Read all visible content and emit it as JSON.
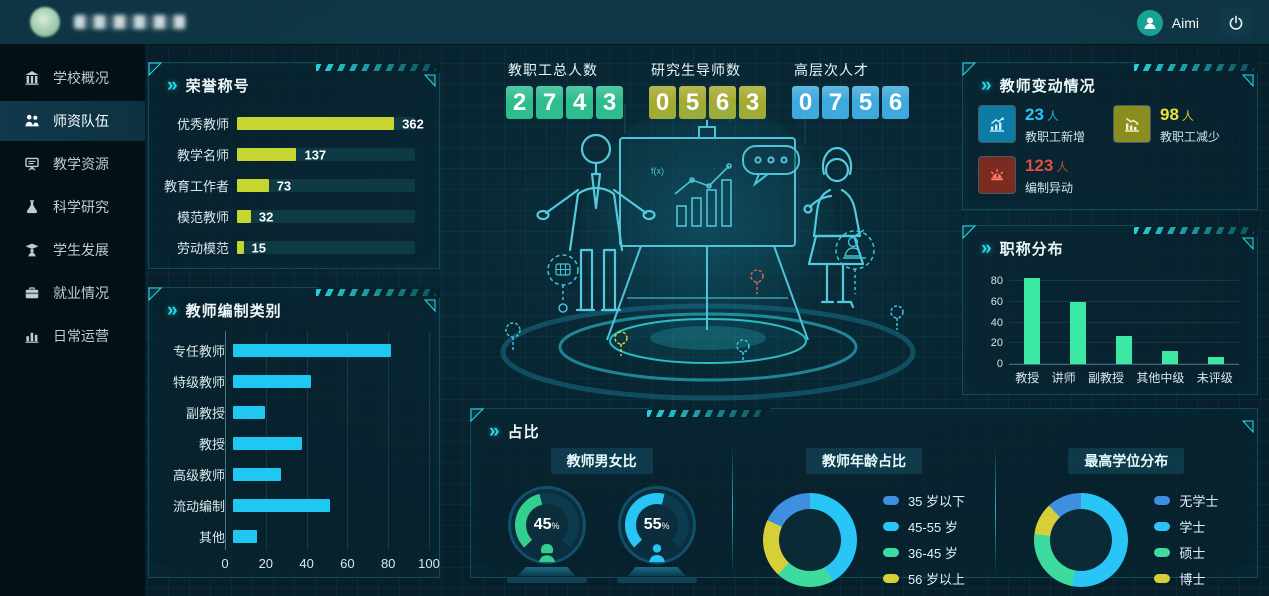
{
  "topbar": {
    "user_name": "Aimi",
    "icons": [
      "user-avatar-icon",
      "power-icon"
    ]
  },
  "sidebar": {
    "items": [
      {
        "label": "学校概况",
        "icon": "school-building-icon",
        "active": false
      },
      {
        "label": "师资队伍",
        "icon": "faculty-team-icon",
        "active": true
      },
      {
        "label": "教学资源",
        "icon": "teaching-resources-icon",
        "active": false
      },
      {
        "label": "科学研究",
        "icon": "research-flask-icon",
        "active": false
      },
      {
        "label": "学生发展",
        "icon": "student-development-icon",
        "active": false
      },
      {
        "label": "就业情况",
        "icon": "employment-briefcase-icon",
        "active": false
      },
      {
        "label": "日常运营",
        "icon": "operations-chart-icon",
        "active": false
      }
    ]
  },
  "stats": [
    {
      "label": "教职工总人数",
      "value": "2743",
      "color": "#2ebd8f"
    },
    {
      "label": "研究生导师数",
      "value": "0563",
      "color": "#a6ab2f"
    },
    {
      "label": "高层次人才",
      "value": "0756",
      "color": "#3ea9dd"
    }
  ],
  "panels": {
    "changes": {
      "title": "教师变动情况",
      "items": [
        {
          "value": "23",
          "unit": "人",
          "label": "教职工新增",
          "color": "#29c5f6",
          "icon": "increase-chart-icon",
          "icon_bg": "#0c7ca4"
        },
        {
          "value": "98",
          "unit": "人",
          "label": "教职工减少",
          "color": "#e8e23a",
          "icon": "decrease-chart-icon",
          "icon_bg": "#8a8e1e"
        },
        {
          "value": "123",
          "unit": "人",
          "label": "编制异动",
          "color": "#e0503f",
          "icon": "alarm-icon",
          "icon_bg": "#7c2b20"
        }
      ]
    },
    "proportion": {
      "title": "占比"
    }
  },
  "illustration": {
    "board_formula": "f(x)"
  },
  "chart_data": [
    {
      "id": "honor",
      "type": "bar",
      "orientation": "horizontal",
      "title": "荣誉称号",
      "categories": [
        "优秀教师",
        "教学名师",
        "教育工作者",
        "模范教师",
        "劳动模范"
      ],
      "values": [
        362,
        137,
        73,
        32,
        15
      ],
      "max": 410,
      "bar_color": "#c6d530",
      "track_color": "#0d3a44",
      "show_track": true,
      "show_values": true
    },
    {
      "id": "establishment",
      "type": "bar",
      "orientation": "horizontal",
      "title": "教师编制类别",
      "categories": [
        "专任教师",
        "特级教师",
        "副教授",
        "教授",
        "高级教师",
        "流动编制",
        "其他"
      ],
      "values": [
        85,
        42,
        17,
        37,
        26,
        52,
        13
      ],
      "max": 100,
      "xticks": [
        0,
        20,
        40,
        60,
        80,
        100
      ],
      "bar_color": "#1ec8f0",
      "show_track": false,
      "show_values": false
    },
    {
      "id": "titles",
      "type": "bar",
      "orientation": "vertical",
      "title": "职称分布",
      "categories": [
        "教授",
        "讲师",
        "副教授",
        "其他中级",
        "未评级"
      ],
      "values": [
        83,
        60,
        27,
        13,
        7
      ],
      "yticks": [
        0,
        20,
        40,
        60,
        80
      ],
      "ymax": 88,
      "bar_color": "#3ce9a4"
    },
    {
      "id": "gender",
      "type": "pie",
      "subtype": "gauge",
      "title": "教师男女比",
      "gauges": [
        {
          "icon": "female-figure-icon",
          "value": 45,
          "color": "#35cf8d"
        },
        {
          "icon": "male-figure-icon",
          "value": 55,
          "color": "#28c4f4"
        }
      ]
    },
    {
      "id": "age",
      "type": "pie",
      "subtype": "donut",
      "title": "教师年龄占比",
      "rotation": -65,
      "slices": [
        {
          "label": "35 岁以下",
          "value": 18,
          "color": "#3f8fe0"
        },
        {
          "label": "45-55 岁",
          "value": 42,
          "color": "#29c5f6"
        },
        {
          "label": "36-45 岁",
          "value": 20,
          "color": "#3ddc9e"
        },
        {
          "label": "56 岁以上",
          "value": 20,
          "color": "#d6cf3a"
        }
      ]
    },
    {
      "id": "degree",
      "type": "pie",
      "subtype": "donut",
      "title": "最高学位分布",
      "rotation": -43,
      "slices": [
        {
          "label": "无学士",
          "value": 12,
          "color": "#3f8fe0"
        },
        {
          "label": "学士",
          "value": 53,
          "color": "#29c5f6"
        },
        {
          "label": "硕士",
          "value": 24,
          "color": "#3ddc9e"
        },
        {
          "label": "博士",
          "value": 11,
          "color": "#d6cf3a"
        }
      ]
    }
  ]
}
